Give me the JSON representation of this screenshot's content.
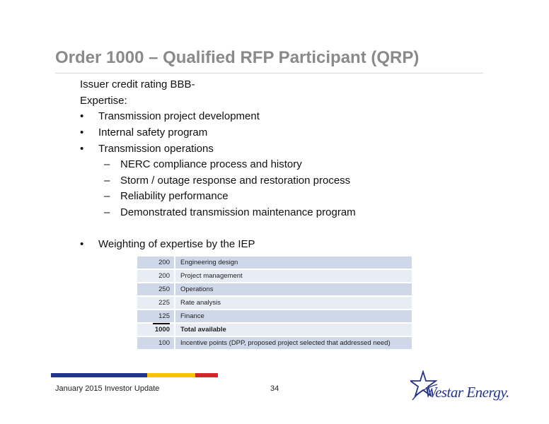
{
  "slide": {
    "title": "Order 1000 – Qualified RFP Participant (QRP)"
  },
  "content": {
    "credit_line": "Issuer credit rating BBB-",
    "expertise_label": "Expertise:",
    "bullet_char": "•",
    "dash_char": "–",
    "bullets": [
      "Transmission project development",
      "Internal safety program",
      "Transmission operations"
    ],
    "sub_bullets": [
      "NERC compliance process and history",
      "Storm / outage response and restoration process",
      "Reliability performance",
      "Demonstrated transmission maintenance program"
    ],
    "weighting_bullet": "Weighting of expertise by the IEP"
  },
  "weights_table": {
    "rows": [
      {
        "points": "200",
        "label": "Engineering design"
      },
      {
        "points": "200",
        "label": "Project management"
      },
      {
        "points": "250",
        "label": "Operations"
      },
      {
        "points": "225",
        "label": "Rate analysis"
      },
      {
        "points": "125",
        "label": "Finance"
      },
      {
        "points": "1000",
        "label": "Total available"
      },
      {
        "points": "100",
        "label": "Incentive points (DPP, proposed project selected that addressed need)"
      }
    ]
  },
  "footer": {
    "left_text": "January 2015 Investor Update",
    "page_number": "34",
    "logo_text": "Westar Energy."
  },
  "colors": {
    "title_gray": "#8a8a8a",
    "bar_blue": "#23368f",
    "bar_yellow": "#f7c600",
    "bar_red": "#d7262b",
    "logo_blue": "#24348a",
    "table_row_dark": "#cfd8e8",
    "table_row_light": "#e8edf5"
  }
}
